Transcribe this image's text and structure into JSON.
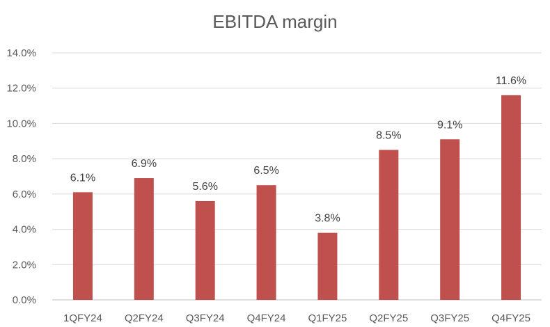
{
  "chart_data": {
    "type": "bar",
    "title": "EBITDA margin",
    "xlabel": "",
    "ylabel": "",
    "categories": [
      "1QFY24",
      "Q2FY24",
      "Q3FY24",
      "Q4FY24",
      "Q1FY25",
      "Q2FY25",
      "Q3FY25",
      "Q4FY25"
    ],
    "values": [
      6.1,
      6.9,
      5.6,
      6.5,
      3.8,
      8.5,
      9.1,
      11.6
    ],
    "data_labels": [
      "6.1%",
      "6.9%",
      "5.6%",
      "6.5%",
      "3.8%",
      "8.5%",
      "9.1%",
      "11.6%"
    ],
    "ylim": [
      0,
      14
    ],
    "yticks": [
      0,
      2,
      4,
      6,
      8,
      10,
      12,
      14
    ],
    "ytick_labels": [
      "0.0%",
      "2.0%",
      "4.0%",
      "6.0%",
      "8.0%",
      "10.0%",
      "12.0%",
      "14.0%"
    ],
    "grid": true,
    "legend": "none",
    "colors": {
      "bar": "#c0504d",
      "grid": "#d9d9d9",
      "axis": "#bfbfbf",
      "text": "#595959"
    }
  }
}
